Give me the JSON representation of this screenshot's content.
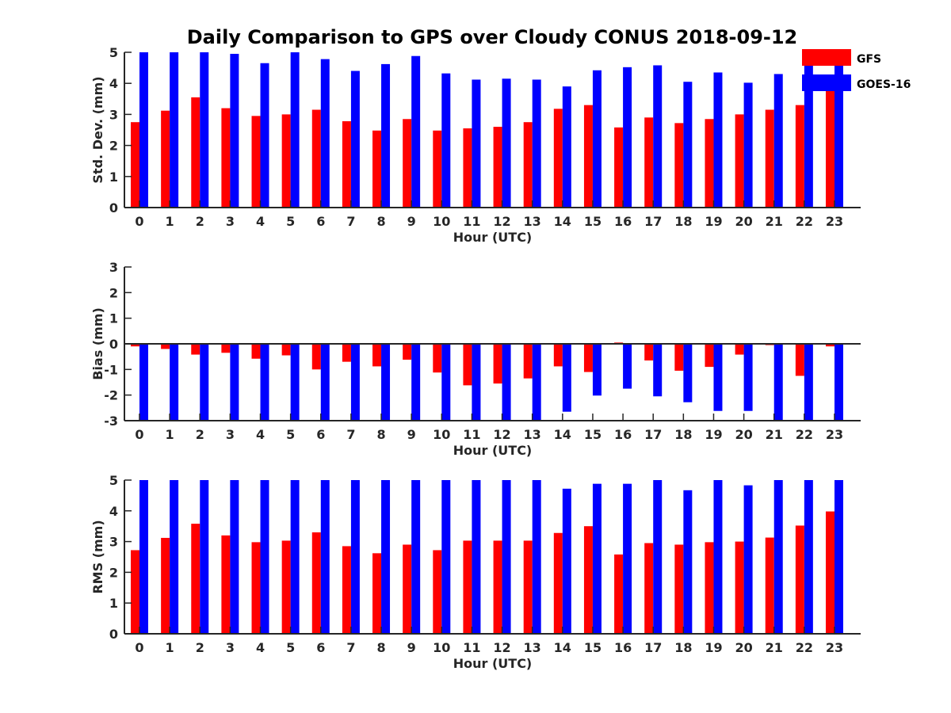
{
  "chart_data": {
    "title": "Daily Comparison to GPS over Cloudy CONUS 2018-09-12",
    "legend": {
      "placement": "top-right",
      "entries": [
        {
          "name": "GFS",
          "color": "#ff0000"
        },
        {
          "name": "GOES-16",
          "color": "#0000ff"
        }
      ]
    },
    "panels": [
      {
        "type": "bar",
        "xlabel": "Hour (UTC)",
        "ylabel": "Std. Dev. (mm)",
        "ylim": [
          0,
          5
        ],
        "yticks": [
          0,
          1,
          2,
          3,
          4,
          5
        ],
        "categories": [
          "0",
          "1",
          "2",
          "3",
          "4",
          "5",
          "6",
          "7",
          "8",
          "9",
          "10",
          "11",
          "12",
          "13",
          "14",
          "15",
          "16",
          "17",
          "18",
          "19",
          "20",
          "21",
          "22",
          "23"
        ],
        "grid": false,
        "series": [
          {
            "name": "GFS",
            "color": "#ff0000",
            "values": [
              2.75,
              3.12,
              3.55,
              3.2,
              2.95,
              3.0,
              3.15,
              2.78,
              2.48,
              2.85,
              2.48,
              2.55,
              2.6,
              2.75,
              3.18,
              3.3,
              2.58,
              2.9,
              2.72,
              2.85,
              3.0,
              3.15,
              3.3,
              4.1
            ]
          },
          {
            "name": "GOES-16",
            "color": "#0000ff",
            "values": [
              5.0,
              5.0,
              5.0,
              4.95,
              4.65,
              5.0,
              4.78,
              4.4,
              4.62,
              4.88,
              4.32,
              4.12,
              4.15,
              4.12,
              3.9,
              4.42,
              4.52,
              4.58,
              4.05,
              4.35,
              4.02,
              4.3,
              5.0,
              4.7
            ]
          }
        ]
      },
      {
        "type": "bar",
        "xlabel": "Hour (UTC)",
        "ylabel": "Bias (mm)",
        "ylim": [
          -3,
          3
        ],
        "yticks": [
          -3,
          -2,
          -1,
          0,
          1,
          2,
          3
        ],
        "categories": [
          "0",
          "1",
          "2",
          "3",
          "4",
          "5",
          "6",
          "7",
          "8",
          "9",
          "10",
          "11",
          "12",
          "13",
          "14",
          "15",
          "16",
          "17",
          "18",
          "19",
          "20",
          "21",
          "22",
          "23"
        ],
        "grid": false,
        "series": [
          {
            "name": "GFS",
            "color": "#ff0000",
            "values": [
              -0.1,
              -0.2,
              -0.42,
              -0.35,
              -0.58,
              -0.45,
              -1.0,
              -0.7,
              -0.88,
              -0.62,
              -1.12,
              -1.62,
              -1.55,
              -1.35,
              -0.88,
              -1.1,
              0.05,
              -0.65,
              -1.05,
              -0.9,
              -0.42,
              -0.05,
              -1.25,
              -0.1
            ]
          },
          {
            "name": "GOES-16",
            "color": "#0000ff",
            "values": [
              -3.0,
              -3.0,
              -3.0,
              -3.0,
              -3.0,
              -3.0,
              -3.0,
              -3.0,
              -3.0,
              -3.0,
              -3.0,
              -3.0,
              -3.0,
              -3.0,
              -2.65,
              -2.02,
              -1.75,
              -2.05,
              -2.28,
              -2.62,
              -2.62,
              -3.0,
              -3.0,
              -3.0
            ]
          }
        ]
      },
      {
        "type": "bar",
        "xlabel": "Hour (UTC)",
        "ylabel": "RMS (mm)",
        "ylim": [
          0,
          5
        ],
        "yticks": [
          0,
          1,
          2,
          3,
          4,
          5
        ],
        "categories": [
          "0",
          "1",
          "2",
          "3",
          "4",
          "5",
          "6",
          "7",
          "8",
          "9",
          "10",
          "11",
          "12",
          "13",
          "14",
          "15",
          "16",
          "17",
          "18",
          "19",
          "20",
          "21",
          "22",
          "23"
        ],
        "grid": false,
        "series": [
          {
            "name": "GFS",
            "color": "#ff0000",
            "values": [
              2.72,
              3.12,
              3.58,
              3.2,
              2.98,
              3.03,
              3.3,
              2.85,
              2.62,
              2.9,
              2.72,
              3.03,
              3.03,
              3.03,
              3.28,
              3.5,
              2.58,
              2.95,
              2.9,
              2.98,
              3.0,
              3.13,
              3.52,
              3.98
            ]
          },
          {
            "name": "GOES-16",
            "color": "#0000ff",
            "values": [
              5.0,
              5.0,
              5.0,
              5.0,
              5.0,
              5.0,
              5.0,
              5.0,
              5.0,
              5.0,
              5.0,
              5.0,
              5.0,
              5.0,
              4.72,
              4.88,
              4.88,
              5.0,
              4.67,
              5.0,
              4.83,
              5.0,
              5.0,
              5.0
            ]
          }
        ]
      }
    ]
  }
}
